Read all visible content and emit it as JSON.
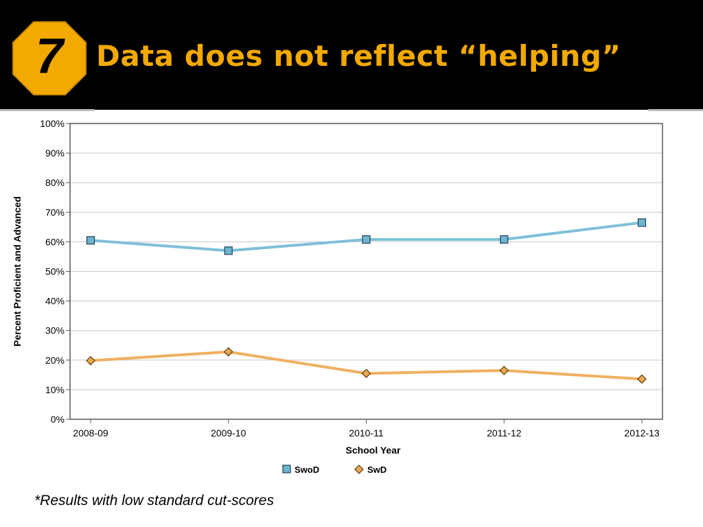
{
  "slide": {
    "number": "7",
    "title": "Data does not reflect “helping”",
    "footnote": "*Results with low standard cut-scores"
  },
  "colors": {
    "background": "#000000",
    "title": "#f2a900",
    "badge": "#f2a900",
    "series_swod": "#7ec0d8",
    "series_swd": "#f0b060",
    "grid": "#c8c8c8"
  },
  "chart_data": {
    "type": "line",
    "title": "",
    "xlabel": "School Year",
    "ylabel": "Percent Proficient and Advanced",
    "ylim": [
      0,
      100
    ],
    "ytick_values": [
      0,
      10,
      20,
      30,
      40,
      50,
      60,
      70,
      80,
      90,
      100
    ],
    "yticks": [
      "0%",
      "10%",
      "20%",
      "30%",
      "40%",
      "50%",
      "60%",
      "70%",
      "80%",
      "90%",
      "100%"
    ],
    "categories": [
      "2008-09",
      "2009-10",
      "2010-11",
      "2011-12",
      "2012-13"
    ],
    "grid": true,
    "legend_position": "bottom-center",
    "series": [
      {
        "name": "SwoD",
        "marker": "square",
        "color": "#7ec0d8",
        "values": [
          60.5,
          57,
          60.8,
          60.8,
          66.5
        ]
      },
      {
        "name": "SwD",
        "marker": "diamond",
        "color": "#f0b060",
        "values": [
          19.8,
          22.8,
          15.5,
          16.5,
          13.6
        ]
      }
    ]
  }
}
